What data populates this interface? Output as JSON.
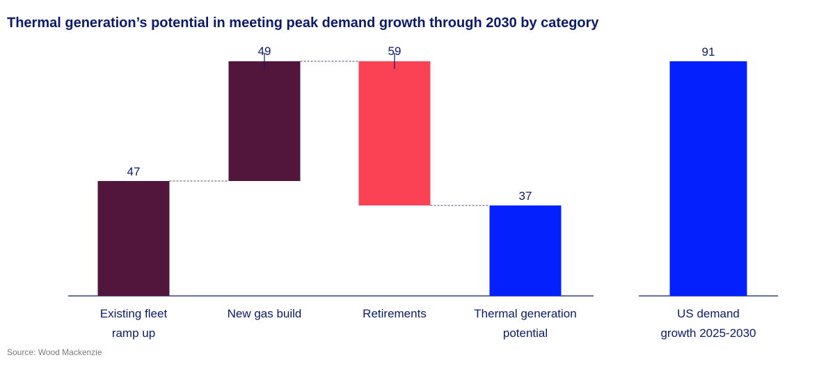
{
  "title": "Thermal generation’s potential in meeting peak demand growth through 2030 by category",
  "source": "Source: Wood Mackenzie",
  "colors": {
    "dark_purple": "#52163c",
    "red": "#fb4154",
    "blue": "#0320fd",
    "axis": "#0a1a6e",
    "connector": "#4a4a6a"
  },
  "chart_data": [
    {
      "type": "bar",
      "subtype": "waterfall",
      "categories": [
        [
          "Existing fleet",
          "ramp up"
        ],
        [
          "New gas build"
        ],
        [
          "Retirements"
        ],
        [
          "Thermal generation",
          "potential"
        ]
      ],
      "bars": [
        {
          "label": "47",
          "start": 0,
          "end": 47,
          "color": "dark_purple"
        },
        {
          "label": "49",
          "start": 47,
          "end": 96,
          "color": "dark_purple"
        },
        {
          "label": "59",
          "start": 96,
          "end": 37,
          "color": "red"
        },
        {
          "label": "37",
          "start": 0,
          "end": 37,
          "color": "blue"
        }
      ],
      "ylim": [
        0,
        96
      ]
    },
    {
      "type": "bar",
      "categories": [
        [
          "US demand",
          "growth 2025-2030"
        ]
      ],
      "values": [
        91
      ],
      "labels": [
        "91"
      ],
      "color": "blue",
      "ylim": [
        0,
        91
      ]
    }
  ]
}
